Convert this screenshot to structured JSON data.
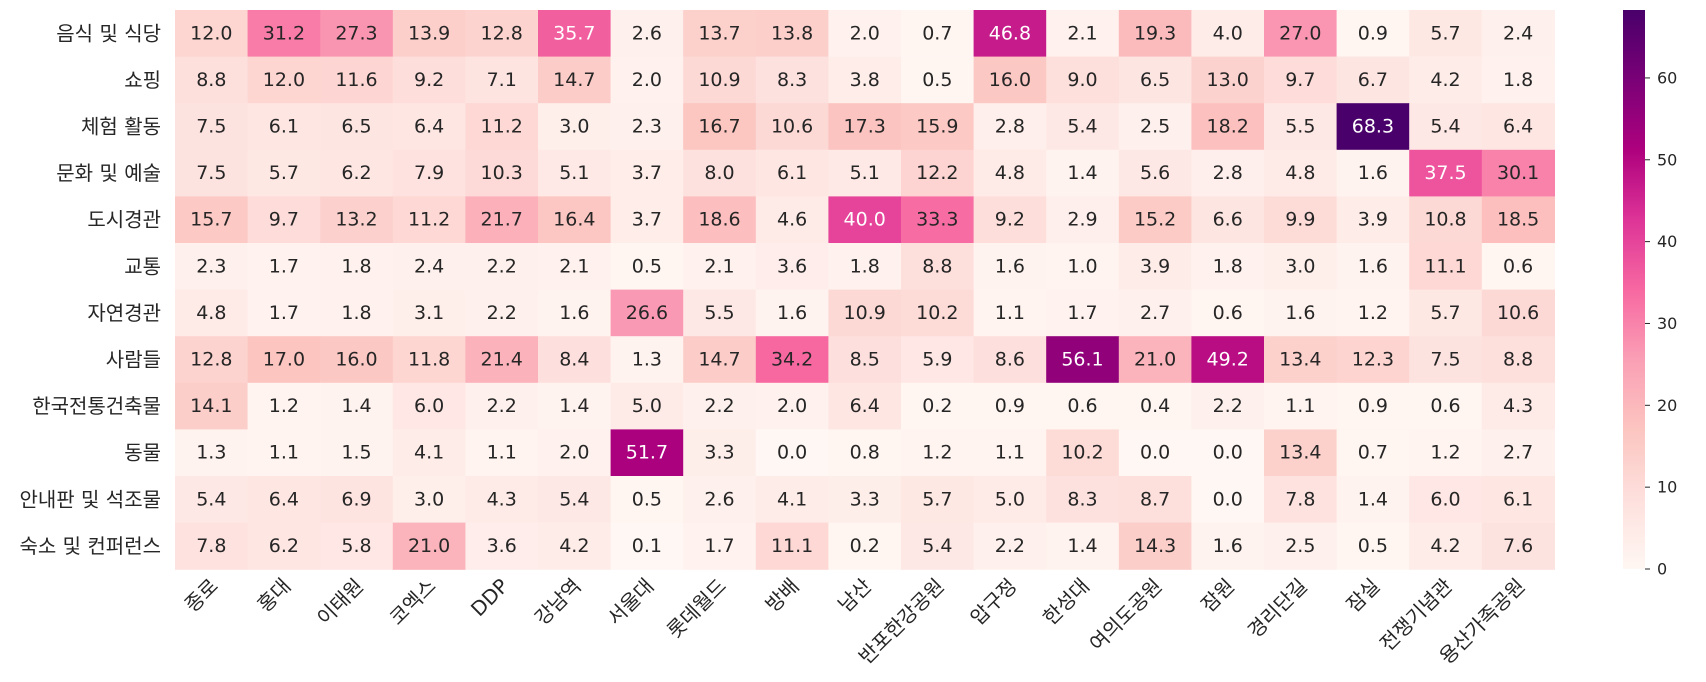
{
  "chart_data": {
    "type": "heatmap",
    "title": "",
    "xlabel": "",
    "ylabel": "",
    "rows": [
      "음식 및 식당",
      "쇼핑",
      "체험 활동",
      "문화 및 예술",
      "도시경관",
      "교통",
      "자연경관",
      "사람들",
      "한국전통건축물",
      "동물",
      "안내판 및 석조물",
      "숙소 및 컨퍼런스"
    ],
    "columns": [
      "종로",
      "홍대",
      "이태원",
      "코엑스",
      "DDP",
      "강남역",
      "서울대",
      "롯데월드",
      "방배",
      "남산",
      "반포한강공원",
      "압구정",
      "한성대",
      "여의도공원",
      "잠원",
      "경리단길",
      "잠실",
      "전쟁기념관",
      "용산가족공원"
    ],
    "values": [
      [
        12.0,
        31.2,
        27.3,
        13.9,
        12.8,
        35.7,
        2.6,
        13.7,
        13.8,
        2.0,
        0.7,
        46.8,
        2.1,
        19.3,
        4.0,
        27.0,
        0.9,
        5.7,
        2.4
      ],
      [
        8.8,
        12.0,
        11.6,
        9.2,
        7.1,
        14.7,
        2.0,
        10.9,
        8.3,
        3.8,
        0.5,
        16.0,
        9.0,
        6.5,
        13.0,
        9.7,
        6.7,
        4.2,
        1.8
      ],
      [
        7.5,
        6.1,
        6.5,
        6.4,
        11.2,
        3.0,
        2.3,
        16.7,
        10.6,
        17.3,
        15.9,
        2.8,
        5.4,
        2.5,
        18.2,
        5.5,
        68.3,
        5.4,
        6.4
      ],
      [
        7.5,
        5.7,
        6.2,
        7.9,
        10.3,
        5.1,
        3.7,
        8.0,
        6.1,
        5.1,
        12.2,
        4.8,
        1.4,
        5.6,
        2.8,
        4.8,
        1.6,
        37.5,
        30.1
      ],
      [
        15.7,
        9.7,
        13.2,
        11.2,
        21.7,
        16.4,
        3.7,
        18.6,
        4.6,
        40.0,
        33.3,
        9.2,
        2.9,
        15.2,
        6.6,
        9.9,
        3.9,
        10.8,
        18.5
      ],
      [
        2.3,
        1.7,
        1.8,
        2.4,
        2.2,
        2.1,
        0.5,
        2.1,
        3.6,
        1.8,
        8.8,
        1.6,
        1.0,
        3.9,
        1.8,
        3.0,
        1.6,
        11.1,
        0.6
      ],
      [
        4.8,
        1.7,
        1.8,
        3.1,
        2.2,
        1.6,
        26.6,
        5.5,
        1.6,
        10.9,
        10.2,
        1.1,
        1.7,
        2.7,
        0.6,
        1.6,
        1.2,
        5.7,
        10.6
      ],
      [
        12.8,
        17.0,
        16.0,
        11.8,
        21.4,
        8.4,
        1.3,
        14.7,
        34.2,
        8.5,
        5.9,
        8.6,
        56.1,
        21.0,
        49.2,
        13.4,
        12.3,
        7.5,
        8.8
      ],
      [
        14.1,
        1.2,
        1.4,
        6.0,
        2.2,
        1.4,
        5.0,
        2.2,
        2.0,
        6.4,
        0.2,
        0.9,
        0.6,
        0.4,
        2.2,
        1.1,
        0.9,
        0.6,
        4.3
      ],
      [
        1.3,
        1.1,
        1.5,
        4.1,
        1.1,
        2.0,
        51.7,
        3.3,
        0.0,
        0.8,
        1.2,
        1.1,
        10.2,
        0.0,
        0.0,
        13.4,
        0.7,
        1.2,
        2.7
      ],
      [
        5.4,
        6.4,
        6.9,
        3.0,
        4.3,
        5.4,
        0.5,
        2.6,
        4.1,
        3.3,
        5.7,
        5.0,
        8.3,
        8.7,
        0.0,
        7.8,
        1.4,
        6.0,
        6.1
      ],
      [
        7.8,
        6.2,
        5.8,
        21.0,
        3.6,
        4.2,
        0.1,
        1.7,
        11.1,
        0.2,
        5.4,
        2.2,
        1.4,
        14.3,
        1.6,
        2.5,
        0.5,
        4.2,
        7.6
      ]
    ],
    "value_format": "0.0",
    "colormap": "RdPu",
    "colorbar": {
      "min": 0,
      "max": 68.3,
      "ticks": [
        0,
        10,
        20,
        30,
        40,
        50,
        60
      ]
    },
    "colors": {
      "low": "#fff7f3",
      "high": "#49006a",
      "text_dark": "#262626",
      "text_light": "#ffffff"
    }
  }
}
